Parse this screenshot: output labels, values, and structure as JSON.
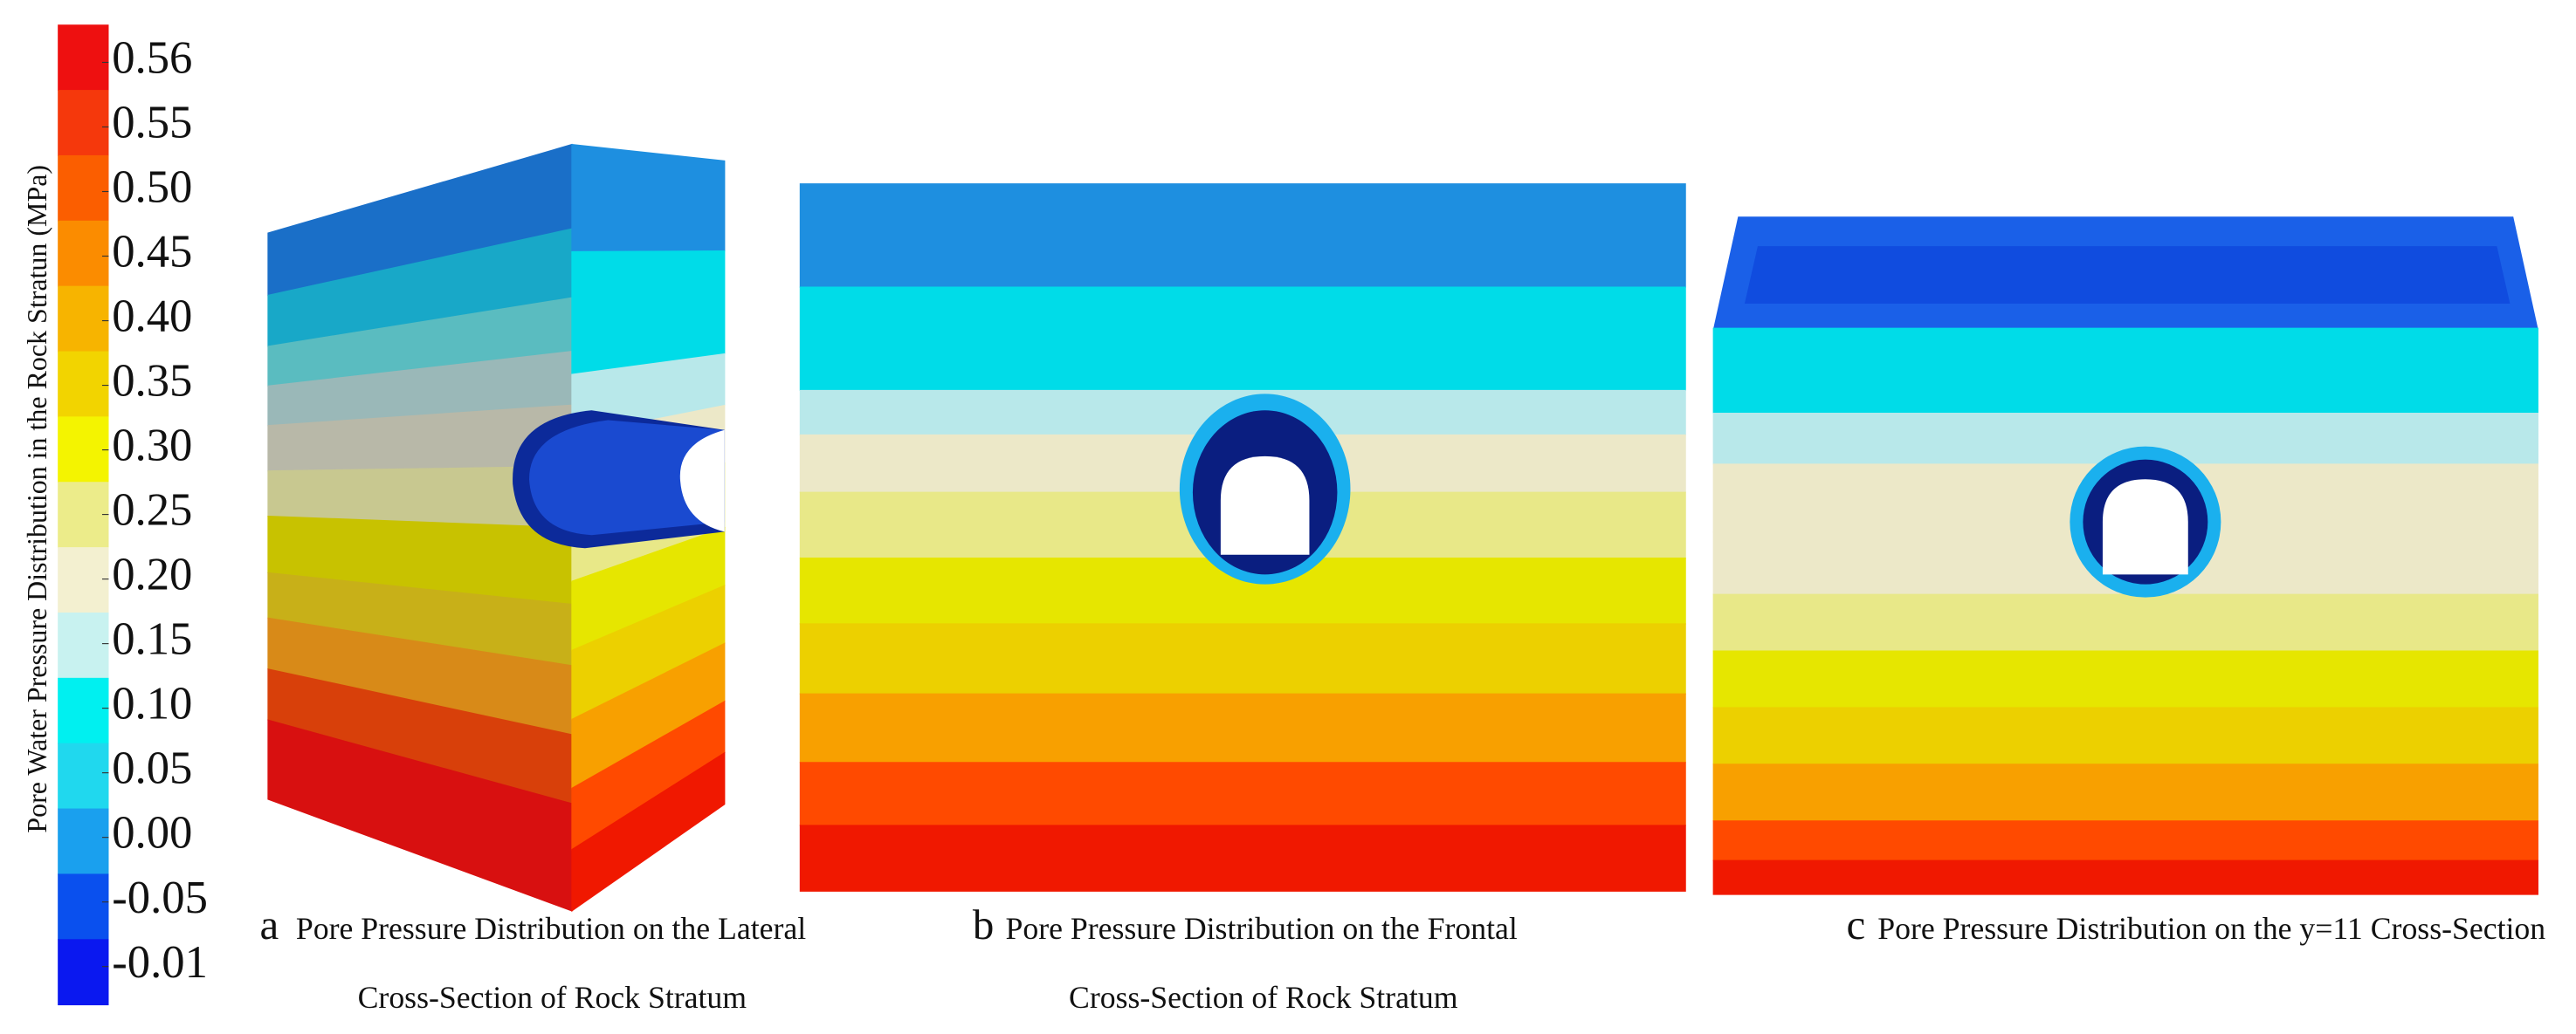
{
  "chart_data": {
    "type": "contour",
    "colorbar": {
      "title": "Pore Water Pressure Distribution in the Rock Stratun (MPa)",
      "ticks": [
        0.56,
        0.55,
        {
          "value": 0.5,
          "label": "0.50"
        },
        0.45,
        {
          "value": 0.4,
          "label": "0.40"
        },
        0.35,
        {
          "value": 0.3,
          "label": "0.30"
        },
        0.25,
        {
          "value": 0.2,
          "label": "0.20"
        },
        0.15,
        {
          "value": 0.1,
          "label": "0.10"
        },
        0.05,
        {
          "value": 0,
          "label": "0.00"
        },
        -0.05,
        -0.01
      ],
      "colors": [
        "#ee1010",
        "#f5380c",
        "#fb5e00",
        "#fb8c00",
        "#f7b400",
        "#f2d400",
        "#f4f400",
        "#ecec8a",
        "#f3f0d0",
        "#c8f2f0",
        "#00f0f0",
        "#20d8ee",
        "#1aa0ee",
        "#0a50ee",
        "#0a18f0"
      ]
    },
    "panels": [
      {
        "letter": "a",
        "caption": [
          "Pore Pressure Distribution on the Lateral",
          "Cross-Section of Rock Stratum"
        ]
      },
      {
        "letter": "b",
        "caption": [
          "Pore Pressure Distribution on the Frontal",
          "Cross-Section of Rock Stratum"
        ]
      },
      {
        "letter": "c",
        "caption": [
          "Pore Pressure Distribution on the y=11 Cross-Section"
        ]
      }
    ]
  }
}
